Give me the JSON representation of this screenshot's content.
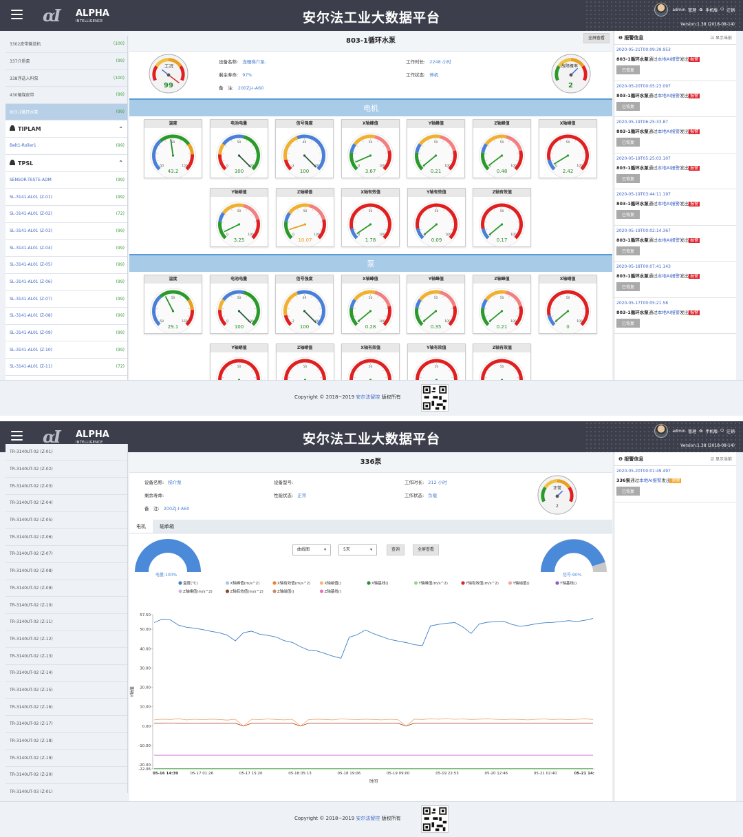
{
  "header": {
    "title": "安尔法工业大数据平台",
    "brand1": "ALPHA",
    "brand2": "INTELLIGENCE",
    "user": "admin",
    "manage": "管理",
    "mobile": "手机版",
    "logout": "注销",
    "version": "Version:1.38 (2018-08-14)"
  },
  "screen1": {
    "sidebar": [
      {
        "type": "item",
        "label": "3302皮带输送机",
        "count": "(100)"
      },
      {
        "type": "item",
        "label": "337介质泵",
        "count": "(99)"
      },
      {
        "type": "item",
        "label": "338浮选入料泵",
        "count": "(100)"
      },
      {
        "type": "item",
        "label": "430输煤皮带",
        "count": "(99)"
      },
      {
        "type": "item",
        "label": "803-1循环水泵",
        "count": "(99)",
        "selected": true
      },
      {
        "type": "group",
        "label": "TIPLAM"
      },
      {
        "type": "item",
        "label": "Belt1-Roller1",
        "count": "(99)",
        "blue": true
      },
      {
        "type": "group",
        "label": "TPSL"
      },
      {
        "type": "item",
        "label": "SENSOR-TESTE-ADM",
        "count": "(99)",
        "blue": true
      },
      {
        "type": "item",
        "label": "SL-3141-AL01 (Z-01)",
        "count": "(99)",
        "blue": true
      },
      {
        "type": "item",
        "label": "SL-3141-AL01 (Z-02)",
        "count": "(72)",
        "blue": true
      },
      {
        "type": "item",
        "label": "SL-3141-AL01 (Z-03)",
        "count": "(99)",
        "blue": true
      },
      {
        "type": "item",
        "label": "SL-3141-AL01 (Z-04)",
        "count": "(99)",
        "blue": true
      },
      {
        "type": "item",
        "label": "SL-3141-AL01 (Z-05)",
        "count": "(99)",
        "blue": true
      },
      {
        "type": "item",
        "label": "SL-3141-AL01 (Z-06)",
        "count": "(99)",
        "blue": true
      },
      {
        "type": "item",
        "label": "SL-3141-AL01 (Z-07)",
        "count": "(99)",
        "blue": true
      },
      {
        "type": "item",
        "label": "SL-3141-AL01 (Z-08)",
        "count": "(99)",
        "blue": true
      },
      {
        "type": "item",
        "label": "SL-3141-AL01 (Z-09)",
        "count": "(99)",
        "blue": true
      },
      {
        "type": "item",
        "label": "SL-3141-AL01 (Z-10)",
        "count": "(99)",
        "blue": true
      },
      {
        "type": "item",
        "label": "SL-3141-AL01 (Z-11)",
        "count": "(72)",
        "blue": true
      }
    ],
    "page_title": "803-1循环水泵",
    "fullscreen": "全屏查看",
    "fields": {
      "name_label": "设备名称:",
      "name": "浅珊梯介泵-",
      "life_label": "剩余寿命:",
      "life": "97%",
      "note_label": "备　注:",
      "note": "200ZJ-I-A60",
      "hours_label": "工作时长:",
      "hours": "2248 小时",
      "state_label": "工作状态:",
      "state": "停机"
    },
    "condition_gauge": {
      "label": "工况",
      "value": "99"
    },
    "fault_gauge": {
      "label": "故障概率",
      "value": "2"
    },
    "section_motor": "电机",
    "section_pump": "泵",
    "motor_gauges": [
      {
        "title": "温度",
        "value": "43.2",
        "min": "-50",
        "max": "150",
        "mid": "50",
        "kind": "temp",
        "frac": 0.47
      },
      {
        "title": "电池电量",
        "value": "100",
        "min": "0",
        "max": "100",
        "mid": "50",
        "kind": "batt",
        "frac": 1
      },
      {
        "title": "信号强度",
        "value": "100",
        "min": "-2",
        "max": "100",
        "mid": "49",
        "kind": "sig",
        "frac": 1
      },
      {
        "title": "X轴峰值",
        "value": "3.67",
        "min": "0",
        "max": "100",
        "mid": "50",
        "kind": "vib",
        "frac": 0.08
      },
      {
        "title": "Y轴峰值",
        "value": "0.21",
        "min": "0",
        "max": "100",
        "mid": "50",
        "kind": "vib",
        "frac": 0.02
      },
      {
        "title": "Z轴峰值",
        "value": "0.48",
        "min": "0",
        "max": "100",
        "mid": "50",
        "kind": "vib",
        "frac": 0.03
      },
      {
        "title": "X轴峭值",
        "value": "2.42",
        "min": "0",
        "max": "100",
        "mid": "50",
        "kind": "red",
        "frac": 0.05
      },
      {
        "title": "Y轴峭值",
        "value": "3.25",
        "min": "0",
        "max": "100",
        "mid": "50",
        "kind": "vib",
        "frac": 0.07
      },
      {
        "title": "Z轴峭值",
        "value": "10.07",
        "min": "0",
        "max": "100",
        "mid": "50",
        "kind": "vib",
        "frac": 0.1,
        "ncolor": "#e6a020"
      },
      {
        "title": "X轴有效值",
        "value": "1.78",
        "min": "0",
        "max": "100",
        "mid": "50",
        "kind": "red",
        "frac": 0.04
      },
      {
        "title": "Y轴有效值",
        "value": "0.09",
        "min": "0",
        "max": "100",
        "mid": "50",
        "kind": "red",
        "frac": 0.02
      },
      {
        "title": "Z轴有效值",
        "value": "0.17",
        "min": "0",
        "max": "100",
        "mid": "50",
        "kind": "red",
        "frac": 0.02
      }
    ],
    "pump_gauges": [
      {
        "title": "温度",
        "value": "29.1",
        "min": "-50",
        "max": "150",
        "mid": "50",
        "kind": "temp",
        "frac": 0.4
      },
      {
        "title": "电池电量",
        "value": "100",
        "min": "0",
        "max": "100",
        "mid": "50",
        "kind": "batt",
        "frac": 1
      },
      {
        "title": "信号强度",
        "value": "100",
        "min": "-2",
        "max": "100",
        "mid": "49",
        "kind": "sig",
        "frac": 1
      },
      {
        "title": "X轴峰值",
        "value": "0.28",
        "min": "0",
        "max": "100",
        "mid": "50",
        "kind": "vib",
        "frac": 0.02
      },
      {
        "title": "Y轴峰值",
        "value": "0.35",
        "min": "0",
        "max": "100",
        "mid": "50",
        "kind": "vib",
        "frac": 0.02
      },
      {
        "title": "Z轴峰值",
        "value": "0.21",
        "min": "0",
        "max": "100",
        "mid": "50",
        "kind": "vib",
        "frac": 0.02
      },
      {
        "title": "X轴峭值",
        "value": "0",
        "min": "0",
        "max": "100",
        "mid": "50",
        "kind": "red",
        "frac": 0.02
      },
      {
        "title": "Y轴峭值",
        "value": "",
        "min": "",
        "max": "",
        "mid": "50",
        "kind": "red",
        "frac": 0.02
      },
      {
        "title": "Z轴峭值",
        "value": "",
        "min": "",
        "max": "",
        "mid": "50",
        "kind": "red",
        "frac": 0.02
      },
      {
        "title": "X轴有效值",
        "value": "",
        "min": "",
        "max": "",
        "mid": "50",
        "kind": "red",
        "frac": 0.02
      },
      {
        "title": "Y轴有效值",
        "value": "",
        "min": "",
        "max": "",
        "mid": "50",
        "kind": "red",
        "frac": 0.02
      },
      {
        "title": "Z轴有效值",
        "value": "",
        "min": "",
        "max": "",
        "mid": "50",
        "kind": "red",
        "frac": 0.02
      }
    ],
    "alarm_title": "报警信息",
    "show_current": "显示当前",
    "alarms": [
      {
        "ts": "2020-05-21T00:09:39.953",
        "device": "803-1循环水泵",
        "mid": "通过",
        "link": "本地AI报警",
        "tail": "发出",
        "tag": "报警"
      },
      {
        "ts": "2020-05-20T00:05:23.097",
        "device": "803-1循环水泵",
        "mid": "通过",
        "link": "本地AI报警",
        "tail": "发出",
        "tag": "报警"
      },
      {
        "ts": "2020-05-19T06:25:33.87",
        "device": "803-1循环水泵",
        "mid": "通过",
        "link": "本地AI报警",
        "tail": "发出",
        "tag": "报警"
      },
      {
        "ts": "2020-05-19T05:25:03.107",
        "device": "803-1循环水泵",
        "mid": "通过",
        "link": "本地AI报警",
        "tail": "发出",
        "tag": "报警"
      },
      {
        "ts": "2020-05-19T03:44:11.197",
        "device": "803-1循环水泵",
        "mid": "通过",
        "link": "本地AI报警",
        "tail": "发出",
        "tag": "报警"
      },
      {
        "ts": "2020-05-19T00:02:14.367",
        "device": "803-1循环水泵",
        "mid": "通过",
        "link": "本地AI报警",
        "tail": "发出",
        "tag": "报警"
      },
      {
        "ts": "2020-05-18T00:07:41.143",
        "device": "803-1循环水泵",
        "mid": "通过",
        "link": "本地AI报警",
        "tail": "发出",
        "tag": "报警"
      },
      {
        "ts": "2020-05-17T00:05:21.58",
        "device": "803-1循环水泵",
        "mid": "通过",
        "link": "本地AI报警",
        "tail": "发出",
        "tag": "报警"
      }
    ],
    "restore": "已恢复"
  },
  "screen2": {
    "sidebar": [
      "TR-3140UT-02 (Z-01)",
      "TR-3140UT-02 (Z-02)",
      "TR-3140UT-02 (Z-03)",
      "TR-3140UT-02 (Z-04)",
      "TR-3140UT-02 (Z-05)",
      "TR-3140UT-02 (Z-06)",
      "TR-3140UT-02 (Z-07)",
      "TR-3140UT-02 (Z-08)",
      "TR-3140UT-02 (Z-09)",
      "TR-3140UT-02 (Z-10)",
      "TR-3140UT-02 (Z-11)",
      "TR-3140UT-02 (Z-12)",
      "TR-3140UT-02 (Z-13)",
      "TR-3140UT-02 (Z-14)",
      "TR-3140UT-02 (Z-15)",
      "TR-3140UT-02 (Z-16)",
      "TR-3140UT-02 (Z-17)",
      "TR-3140UT-02 (Z-18)",
      "TR-3140UT-02 (Z-19)",
      "TR-3140UT-02 (Z-20)",
      "TR-3140UT-03 (Z-01)"
    ],
    "page_title": "336泵",
    "fields": {
      "name_label": "设备名称:",
      "name": "梯介泵",
      "model_label": "设备型号:",
      "model": "",
      "hours_label": "工作时长:",
      "hours": "212 小时",
      "life_label": "剩余寿命:",
      "life": "",
      "perf_label": "性能状态:",
      "perf": "正常",
      "state_label": "工作状态:",
      "state": "负载",
      "note_label": "备　注:",
      "note": "200ZJ-I-A60"
    },
    "condition_gauge": {
      "label": "正常",
      "value": "2"
    },
    "tabs": [
      "电机",
      "轴承箱"
    ],
    "chart_type_select": "曲线图",
    "range_select": "5天",
    "query_btn": "查询",
    "fullscreen_btn": "全屏查看",
    "power_label": "电量:100%",
    "signal_label": "信号:90%",
    "alarm_title": "报警信息",
    "show_current": "显示当前",
    "alarm": {
      "ts": "2020-05-20T00:01:49.497",
      "device": "336泵",
      "mid": "通过",
      "link": "本地AI报警",
      "tail": "发出",
      "tag": "预警"
    },
    "restore": "已恢复"
  },
  "footer": {
    "copyright": "Copyright © 2018~2019",
    "brand": "安尔法智控",
    "rights": "版权所有"
  },
  "chart_data": {
    "type": "line",
    "xlabel": "时间",
    "ylabel": "Y轴值",
    "ylim": [
      -22.06,
      57.5
    ],
    "yticks": [
      "57.50",
      "50.00",
      "40.00",
      "30.00",
      "20.00",
      "10.00",
      "0.00",
      "-10.00",
      "-20.00",
      "-22.06"
    ],
    "xticks": [
      "05-16 14:39",
      "05-17 01:26",
      "05-17 15:20",
      "05-18 05:13",
      "05-18 19:06",
      "05-19 09:00",
      "05-19 22:53",
      "05-20 12:46",
      "05-21 02:40",
      "05-21 14:"
    ],
    "legend": [
      "温度(℃)",
      "X轴峰值(m/s^2)",
      "X轴有效值(m/s^2)",
      "X轴峭值()",
      "X轴基线()",
      "Y轴峰值(m/s^2)",
      "Y轴有效值(m/s^2)",
      "Y轴峭值()",
      "Y轴基线()",
      "Z轴峰值(m/s^2)",
      "Z轴有效值(m/s^2)",
      "Z轴峭值()",
      "Z轴基线()"
    ],
    "legend_colors": [
      "#3b7fc4",
      "#a9c6e8",
      "#e8842c",
      "#f2b77a",
      "#2e8b2e",
      "#8fd88f",
      "#d62728",
      "#f4a6a6",
      "#8c5cc8",
      "#c8b4e0",
      "#8b4a2a",
      "#c98a6a",
      "#e377c2"
    ],
    "series": [
      {
        "name": "温度(℃)",
        "values": [
          53.4,
          55.2,
          54.8,
          52.1,
          51.0,
          50.5,
          49.8,
          48.9,
          48.2,
          46.9,
          44.0,
          48.2,
          49.0,
          47.4,
          46.8,
          46.0,
          44.1,
          43.2,
          41.0,
          39.2,
          38.8,
          37.5,
          36.1,
          35.0,
          45.8,
          47.2,
          49.6,
          47.7,
          46.2,
          44.7,
          43.9,
          43.1,
          42.0,
          41.5,
          51.7,
          52.5,
          53.1,
          53.4,
          51.1,
          47.8,
          52.7,
          53.6,
          53.9,
          54.1,
          52.5,
          51.5,
          52.0,
          52.8,
          53.3,
          53.5,
          53.9,
          54.4,
          54.0,
          54.6,
          55.5
        ]
      },
      {
        "name": "Y轴基线()",
        "values": [
          -15.0,
          -15.0,
          -15.0,
          -15.0,
          -15.0,
          -15.0,
          -15.0,
          -15.0,
          -15.0,
          -15.0,
          -15.0,
          -15.0,
          -15.0,
          -15.0,
          -15.0,
          -15.0,
          -15.0,
          -15.0,
          -15.0,
          -15.0,
          -15.0,
          -15.0,
          -15.0,
          -15.0,
          -15.0,
          -15.0,
          -15.0,
          -15.0,
          -15.0,
          -15.0,
          -15.0,
          -15.0,
          -15.0,
          -15.0,
          -15.0,
          -15.0,
          -15.0,
          -15.0,
          -15.0,
          -15.0,
          -15.0,
          -15.0,
          -15.0,
          -15.0,
          -15.0,
          -15.0,
          -15.0,
          -15.0,
          -15.0,
          -15.0,
          -15.0,
          -15.0,
          -15.0,
          -15.0,
          -15.0
        ]
      },
      {
        "name": "X轴基线()",
        "values": [
          -22.0,
          -22.0,
          -22.0,
          -22.0,
          -22.0,
          -22.0,
          -22.0,
          -22.0,
          -22.0,
          -22.0,
          -22.0,
          -22.0,
          -22.0,
          -22.0,
          -22.0,
          -22.0,
          -22.0,
          -22.0,
          -22.0,
          -22.0,
          -22.0,
          -22.0,
          -22.0,
          -22.0,
          -22.0,
          -22.0,
          -22.0,
          -22.0,
          -22.0,
          -22.0,
          -22.0,
          -22.0,
          -22.0,
          -22.0,
          -22.0,
          -22.0,
          -22.0,
          -22.0,
          -22.0,
          -22.0,
          -22.0,
          -22.0,
          -22.0,
          -22.0,
          -22.0,
          -22.0,
          -22.0,
          -22.0,
          -22.0,
          -22.0,
          -22.0,
          -22.0,
          -22.0,
          -22.0,
          -22.0
        ]
      },
      {
        "name": "X轴有效值(m/s^2)",
        "values": [
          1.5,
          1.5,
          1.6,
          1.5,
          1.5,
          1.4,
          1.5,
          1.5,
          1.5,
          1.5,
          1.5,
          0.0,
          1.5,
          1.5,
          1.5,
          1.5,
          1.5,
          1.5,
          0.0,
          1.5,
          1.5,
          1.5,
          1.5,
          1.5,
          1.5,
          1.5,
          1.5,
          1.5,
          1.5,
          1.5,
          1.5,
          0.0,
          1.5,
          1.5,
          1.5,
          1.5,
          1.5,
          1.5,
          1.5,
          1.5,
          1.5,
          1.5,
          1.5,
          1.5,
          1.5,
          1.5,
          1.5,
          1.5,
          1.5,
          1.5,
          1.5,
          1.5,
          1.5,
          1.5,
          1.5
        ]
      },
      {
        "name": "X轴峰值(m/s^2)",
        "values": [
          3.2,
          3.6,
          3.4,
          3.8,
          3.2,
          3.5,
          3.3,
          3.6,
          3.4,
          3.1,
          3.5,
          0.0,
          3.5,
          3.3,
          3.7,
          3.4,
          3.2,
          3.5,
          0.0,
          3.3,
          3.6,
          3.4,
          3.2,
          3.7,
          3.5,
          3.3,
          3.6,
          3.4,
          3.2,
          3.5,
          3.3,
          0.0,
          3.6,
          3.4,
          3.8,
          3.6,
          3.9,
          3.5,
          3.7,
          3.4,
          3.6,
          3.8,
          3.5,
          3.3,
          3.6,
          3.4,
          3.2,
          3.5,
          3.7,
          3.4,
          3.6,
          3.3,
          3.5,
          3.8,
          3.4
        ]
      }
    ]
  }
}
